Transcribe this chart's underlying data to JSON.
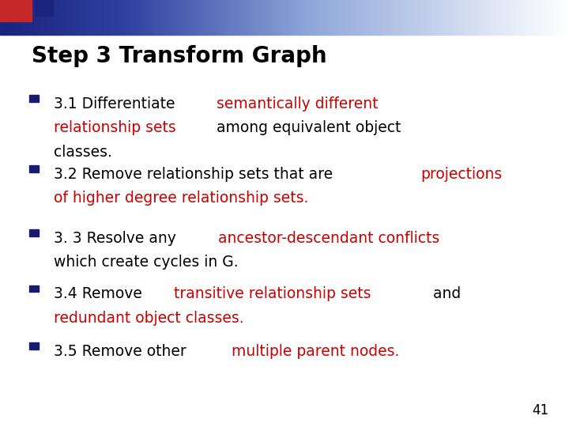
{
  "title": "Step 3 Transform Graph",
  "background_color": "#ffffff",
  "title_color": "#000000",
  "title_fontsize": 20,
  "page_number": "41",
  "bullet_square_color": "#1a1a6e",
  "font_family": "DejaVu Sans",
  "body_fontsize": 13.5,
  "header_sq_color": "#c62828",
  "header_sq2_color": "#1a237e",
  "items": [
    [
      {
        "text": "3.1 Differentiate ",
        "color": "#000000"
      },
      {
        "text": "semantically different\nrelationship sets",
        "color": "#cc0000"
      },
      {
        "text": " among equivalent object\nclasses.",
        "color": "#000000"
      }
    ],
    [
      {
        "text": "3.2 Remove relationship sets that are ",
        "color": "#000000"
      },
      {
        "text": "projections\nof higher degree relationship sets.",
        "color": "#cc0000"
      }
    ],
    [
      {
        "text": "3. 3 Resolve any ",
        "color": "#000000"
      },
      {
        "text": "ancestor-descendant conflicts",
        "color": "#cc0000"
      },
      {
        "text": "\nwhich create cycles in G.",
        "color": "#000000"
      }
    ],
    [
      {
        "text": "3.4 Remove ",
        "color": "#000000"
      },
      {
        "text": "transitive relationship sets",
        "color": "#cc0000"
      },
      {
        "text": " and\n",
        "color": "#000000"
      },
      {
        "text": "redundant object classes.",
        "color": "#cc0000"
      }
    ],
    [
      {
        "text": "3.5 Remove other ",
        "color": "#000000"
      },
      {
        "text": "multiple parent nodes.",
        "color": "#cc0000"
      }
    ]
  ]
}
